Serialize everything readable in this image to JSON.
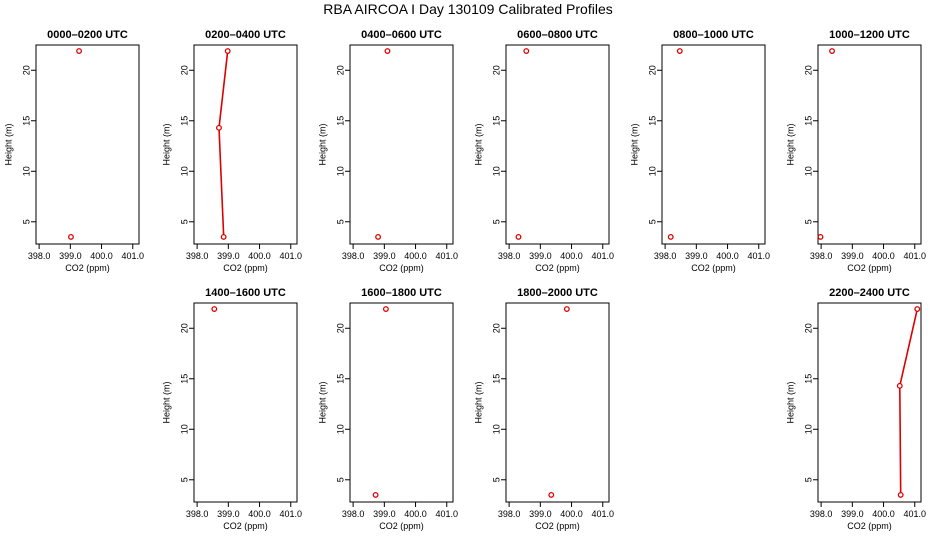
{
  "title": "RBA AIRCOA I  Day 130109  Calibrated Profiles",
  "colors": {
    "series": "#dd0000",
    "axis": "#000000"
  },
  "chart_data": [
    {
      "type": "line",
      "title": "0000–0200 UTC",
      "xlabel": "CO2 (ppm)",
      "ylabel": "Height (m)",
      "xlim": [
        397.9,
        401.2
      ],
      "ylim": [
        2.8,
        22.5
      ],
      "xticks": [
        "398.0",
        "399.0",
        "400.0",
        "401.0"
      ],
      "yticks": [
        "5",
        "10",
        "15",
        "20"
      ],
      "grid": false,
      "points": [
        {
          "x": 399.02,
          "y": 3.5
        },
        {
          "x": 399.28,
          "y": 21.9
        }
      ],
      "connected": false
    },
    {
      "type": "line",
      "title": "0200–0400 UTC",
      "xlabel": "CO2 (ppm)",
      "ylabel": "Height (m)",
      "xlim": [
        397.9,
        401.2
      ],
      "ylim": [
        2.8,
        22.5
      ],
      "xticks": [
        "398.0",
        "399.0",
        "400.0",
        "401.0"
      ],
      "yticks": [
        "5",
        "10",
        "15",
        "20"
      ],
      "grid": false,
      "points": [
        {
          "x": 398.85,
          "y": 3.5
        },
        {
          "x": 398.7,
          "y": 14.3
        },
        {
          "x": 398.98,
          "y": 21.9
        }
      ],
      "connected": true
    },
    {
      "type": "line",
      "title": "0400–0600 UTC",
      "xlabel": "CO2 (ppm)",
      "ylabel": "Height (m)",
      "xlim": [
        397.9,
        401.2
      ],
      "ylim": [
        2.8,
        22.5
      ],
      "xticks": [
        "398.0",
        "399.0",
        "400.0",
        "401.0"
      ],
      "yticks": [
        "5",
        "10",
        "15",
        "20"
      ],
      "grid": false,
      "points": [
        {
          "x": 398.8,
          "y": 3.5
        },
        {
          "x": 399.1,
          "y": 21.9
        }
      ],
      "connected": false
    },
    {
      "type": "line",
      "title": "0600–0800 UTC",
      "xlabel": "CO2 (ppm)",
      "ylabel": "Height (m)",
      "xlim": [
        397.9,
        401.2
      ],
      "ylim": [
        2.8,
        22.5
      ],
      "xticks": [
        "398.0",
        "399.0",
        "400.0",
        "401.0"
      ],
      "yticks": [
        "5",
        "10",
        "15",
        "20"
      ],
      "grid": false,
      "points": [
        {
          "x": 398.3,
          "y": 3.5
        },
        {
          "x": 398.55,
          "y": 21.9
        }
      ],
      "connected": false
    },
    {
      "type": "line",
      "title": "0800–1000 UTC",
      "xlabel": "CO2 (ppm)",
      "ylabel": "Height (m)",
      "xlim": [
        397.9,
        401.2
      ],
      "ylim": [
        2.8,
        22.5
      ],
      "xticks": [
        "398.0",
        "399.0",
        "400.0",
        "401.0"
      ],
      "yticks": [
        "5",
        "10",
        "15",
        "20"
      ],
      "grid": false,
      "points": [
        {
          "x": 398.18,
          "y": 3.5
        },
        {
          "x": 398.47,
          "y": 21.9
        }
      ],
      "connected": false
    },
    {
      "type": "line",
      "title": "1000–1200 UTC",
      "xlabel": "CO2 (ppm)",
      "ylabel": "Height (m)",
      "xlim": [
        397.9,
        401.2
      ],
      "ylim": [
        2.8,
        22.5
      ],
      "xticks": [
        "398.0",
        "399.0",
        "400.0",
        "401.0"
      ],
      "yticks": [
        "5",
        "10",
        "15",
        "20"
      ],
      "grid": false,
      "points": [
        {
          "x": 397.98,
          "y": 3.5
        },
        {
          "x": 398.35,
          "y": 21.9
        }
      ],
      "connected": false
    },
    {
      "type": "line",
      "title": "1400–1600 UTC",
      "xlabel": "CO2 (ppm)",
      "ylabel": "Height (m)",
      "xlim": [
        397.9,
        401.2
      ],
      "ylim": [
        2.8,
        22.5
      ],
      "xticks": [
        "398.0",
        "399.0",
        "400.0",
        "401.0"
      ],
      "yticks": [
        "5",
        "10",
        "15",
        "20"
      ],
      "grid": false,
      "points": [
        {
          "x": 398.55,
          "y": 21.9
        }
      ],
      "connected": false
    },
    {
      "type": "line",
      "title": "1600–1800 UTC",
      "xlabel": "CO2 (ppm)",
      "ylabel": "Height (m)",
      "xlim": [
        397.9,
        401.2
      ],
      "ylim": [
        2.8,
        22.5
      ],
      "xticks": [
        "398.0",
        "399.0",
        "400.0",
        "401.0"
      ],
      "yticks": [
        "5",
        "10",
        "15",
        "20"
      ],
      "grid": false,
      "points": [
        {
          "x": 398.72,
          "y": 3.5
        },
        {
          "x": 399.05,
          "y": 21.9
        }
      ],
      "connected": false
    },
    {
      "type": "line",
      "title": "1800–2000 UTC",
      "xlabel": "CO2 (ppm)",
      "ylabel": "Height (m)",
      "xlim": [
        397.9,
        401.2
      ],
      "ylim": [
        2.8,
        22.5
      ],
      "xticks": [
        "398.0",
        "399.0",
        "400.0",
        "401.0"
      ],
      "yticks": [
        "5",
        "10",
        "15",
        "20"
      ],
      "grid": false,
      "points": [
        {
          "x": 399.35,
          "y": 3.5
        },
        {
          "x": 399.85,
          "y": 21.9
        }
      ],
      "connected": false
    },
    {
      "type": "line",
      "title": "2200–2400 UTC",
      "xlabel": "CO2 (ppm)",
      "ylabel": "Height (m)",
      "xlim": [
        397.9,
        401.2
      ],
      "ylim": [
        2.8,
        22.5
      ],
      "xticks": [
        "398.0",
        "399.0",
        "400.0",
        "401.0"
      ],
      "yticks": [
        "5",
        "10",
        "15",
        "20"
      ],
      "grid": false,
      "points": [
        {
          "x": 400.55,
          "y": 3.5
        },
        {
          "x": 400.52,
          "y": 14.3
        },
        {
          "x": 401.08,
          "y": 21.9
        }
      ],
      "connected": true
    }
  ]
}
